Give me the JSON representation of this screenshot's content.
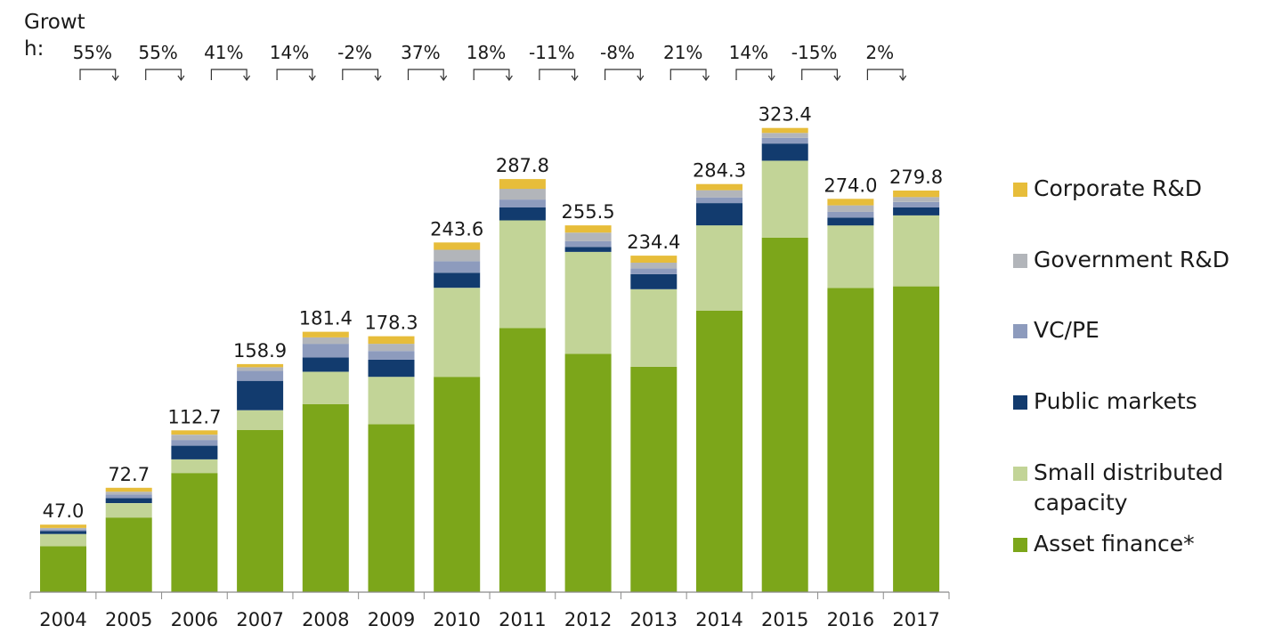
{
  "chart_data": {
    "type": "bar",
    "stacked": true,
    "growth_label": "Growth:",
    "categories": [
      "2004",
      "2005",
      "2006",
      "2007",
      "2008",
      "2009",
      "2010",
      "2011",
      "2012",
      "2013",
      "2014",
      "2015",
      "2016",
      "2017"
    ],
    "totals": [
      "47.0",
      "72.7",
      "112.7",
      "158.9",
      "181.4",
      "178.3",
      "243.6",
      "287.8",
      "255.5",
      "234.4",
      "284.3",
      "323.4",
      "274.0",
      "279.8"
    ],
    "growth": [
      "55%",
      "55%",
      "41%",
      "14%",
      "-2%",
      "37%",
      "18%",
      "-11%",
      "-8%",
      "21%",
      "14%",
      "-15%",
      "2%"
    ],
    "series": [
      {
        "name": "Asset finance*",
        "color": "#7ca61a",
        "values": [
          32.0,
          52.0,
          83.0,
          113.0,
          131.0,
          117.0,
          150.0,
          184.0,
          166.0,
          157.0,
          196.0,
          247.0,
          212.0,
          213.0
        ]
      },
      {
        "name": "Small distributed capacity",
        "color": "#c2d497",
        "values": [
          8.5,
          10.0,
          9.5,
          13.7,
          22.5,
          33.0,
          62.0,
          75.0,
          71.0,
          54.0,
          59.5,
          53.5,
          43.5,
          49.5
        ]
      },
      {
        "name": "Public markets",
        "color": "#123b6e",
        "values": [
          2.0,
          3.5,
          9.5,
          20.5,
          10.0,
          12.0,
          10.5,
          9.0,
          3.5,
          10.5,
          15.5,
          12.0,
          5.5,
          5.5
        ]
      },
      {
        "name": "VC/PE",
        "color": "#8d9bbd",
        "values": [
          1.2,
          2.5,
          4.0,
          7.0,
          9.5,
          6.0,
          8.0,
          5.5,
          4.0,
          4.0,
          4.0,
          4.0,
          4.0,
          3.8
        ]
      },
      {
        "name": "Government R&D",
        "color": "#b2b5ba",
        "values": [
          1.0,
          2.0,
          3.7,
          2.5,
          4.5,
          5.0,
          8.0,
          7.5,
          6.0,
          4.0,
          5.0,
          3.4,
          4.5,
          3.5
        ]
      },
      {
        "name": "Corporate R&D",
        "color": "#e7bd3a",
        "values": [
          2.3,
          2.7,
          3.0,
          2.2,
          3.9,
          5.3,
          5.1,
          6.8,
          5.0,
          4.9,
          4.3,
          3.5,
          4.5,
          4.5
        ]
      }
    ]
  }
}
